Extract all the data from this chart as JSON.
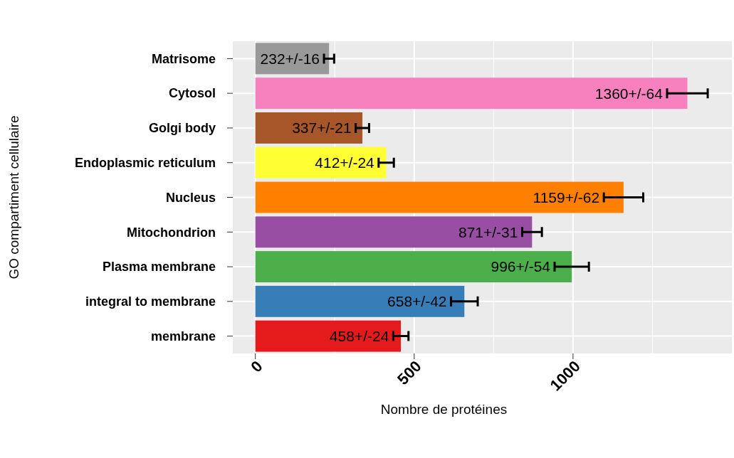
{
  "chart_data": {
    "type": "bar",
    "orientation": "horizontal",
    "xlabel": "Nombre de protéines",
    "ylabel": "GO compartiment cellulaire",
    "categories": [
      "Matrisome",
      "Cytosol",
      "Golgi body",
      "Endoplasmic reticulum",
      "Nucleus",
      "Mitochondrion",
      "Plasma membrane",
      "integral to membrane",
      "membrane"
    ],
    "values": [
      232,
      1360,
      337,
      412,
      1159,
      871,
      996,
      658,
      458
    ],
    "errors": [
      16,
      64,
      21,
      24,
      62,
      31,
      54,
      42,
      24
    ],
    "colors": [
      "#999999",
      "#f781bf",
      "#a65628",
      "#ffff33",
      "#ff7f00",
      "#984ea3",
      "#4daf4a",
      "#377eb8",
      "#e41a1c"
    ],
    "value_labels": [
      "232+/-16",
      "1360+/-64",
      "337+/-21",
      "412+/-24",
      "1159+/-62",
      "871+/-31",
      "996+/-54",
      "658+/-42",
      "458+/-24"
    ],
    "xlim": [
      -71,
      1500
    ],
    "xticks": [
      0,
      {
        "value": 250,
        "label": null
      },
      500,
      {
        "value": 750,
        "label": null
      },
      1000,
      {
        "value": 1250,
        "label": null
      }
    ],
    "grid": true
  }
}
